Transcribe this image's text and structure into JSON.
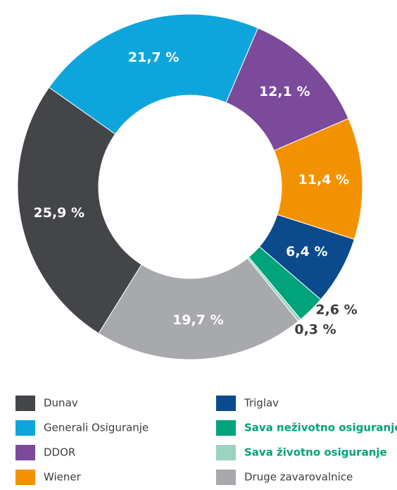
{
  "chart_data": {
    "type": "donut",
    "categories": [
      "Dunav",
      "Generali Osiguranje",
      "DDOR",
      "Wiener",
      "Triglav",
      "Sava neživotno osiguranje",
      "Sava životno osiguranje",
      "Druge zavarovalnice"
    ],
    "values": [
      25.9,
      21.7,
      12.1,
      11.4,
      6.4,
      2.6,
      0.3,
      19.7
    ],
    "value_labels": [
      "25,9 %",
      "21,7 %",
      "12,1 %",
      "11,4 %",
      "6,4 %",
      "2,6 %",
      "0,3 %",
      "19,7 %"
    ],
    "colors": [
      "#434549",
      "#0ea5dc",
      "#7b4a9b",
      "#f39200",
      "#0b4a8c",
      "#00a37a",
      "#9bd3c3",
      "#a7a9ac"
    ]
  }
}
